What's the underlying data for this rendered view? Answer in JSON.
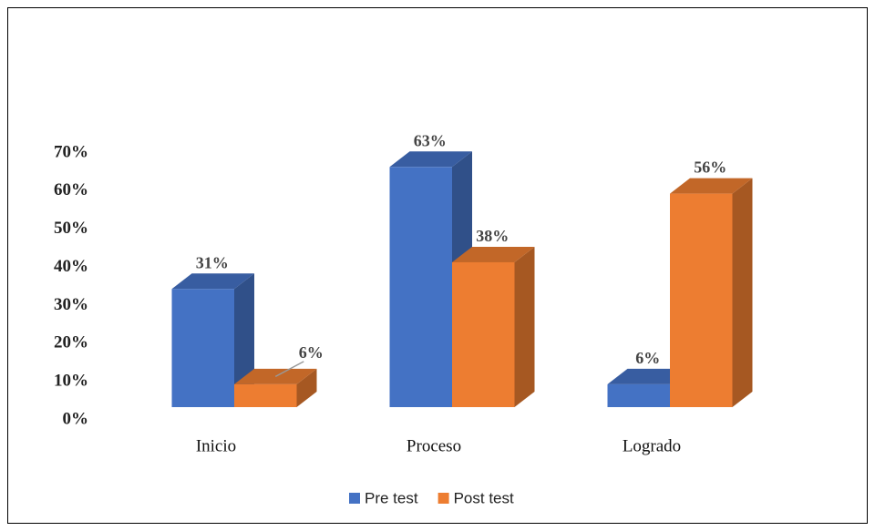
{
  "chart_data": {
    "type": "bar",
    "categories": [
      "Inicio",
      "Proceso",
      "Logrado"
    ],
    "series": [
      {
        "name": "Pre test",
        "color": "#4472c4",
        "values": [
          31,
          63,
          6
        ],
        "value_labels": [
          "31%",
          "63%",
          "6%"
        ]
      },
      {
        "name": "Post test",
        "color": "#ed7d31",
        "values": [
          6,
          38,
          56
        ],
        "value_labels": [
          "6%",
          "38%",
          "56%"
        ]
      }
    ],
    "ylim": [
      0,
      70
    ],
    "yticks": [
      {
        "value": 0,
        "label": "0%"
      },
      {
        "value": 10,
        "label": "10%"
      },
      {
        "value": 20,
        "label": "20%"
      },
      {
        "value": 30,
        "label": "30%"
      },
      {
        "value": 40,
        "label": "40%"
      },
      {
        "value": 50,
        "label": "50%"
      },
      {
        "value": 60,
        "label": "60%"
      },
      {
        "value": 70,
        "label": "70%"
      }
    ],
    "legend": "bottom"
  }
}
